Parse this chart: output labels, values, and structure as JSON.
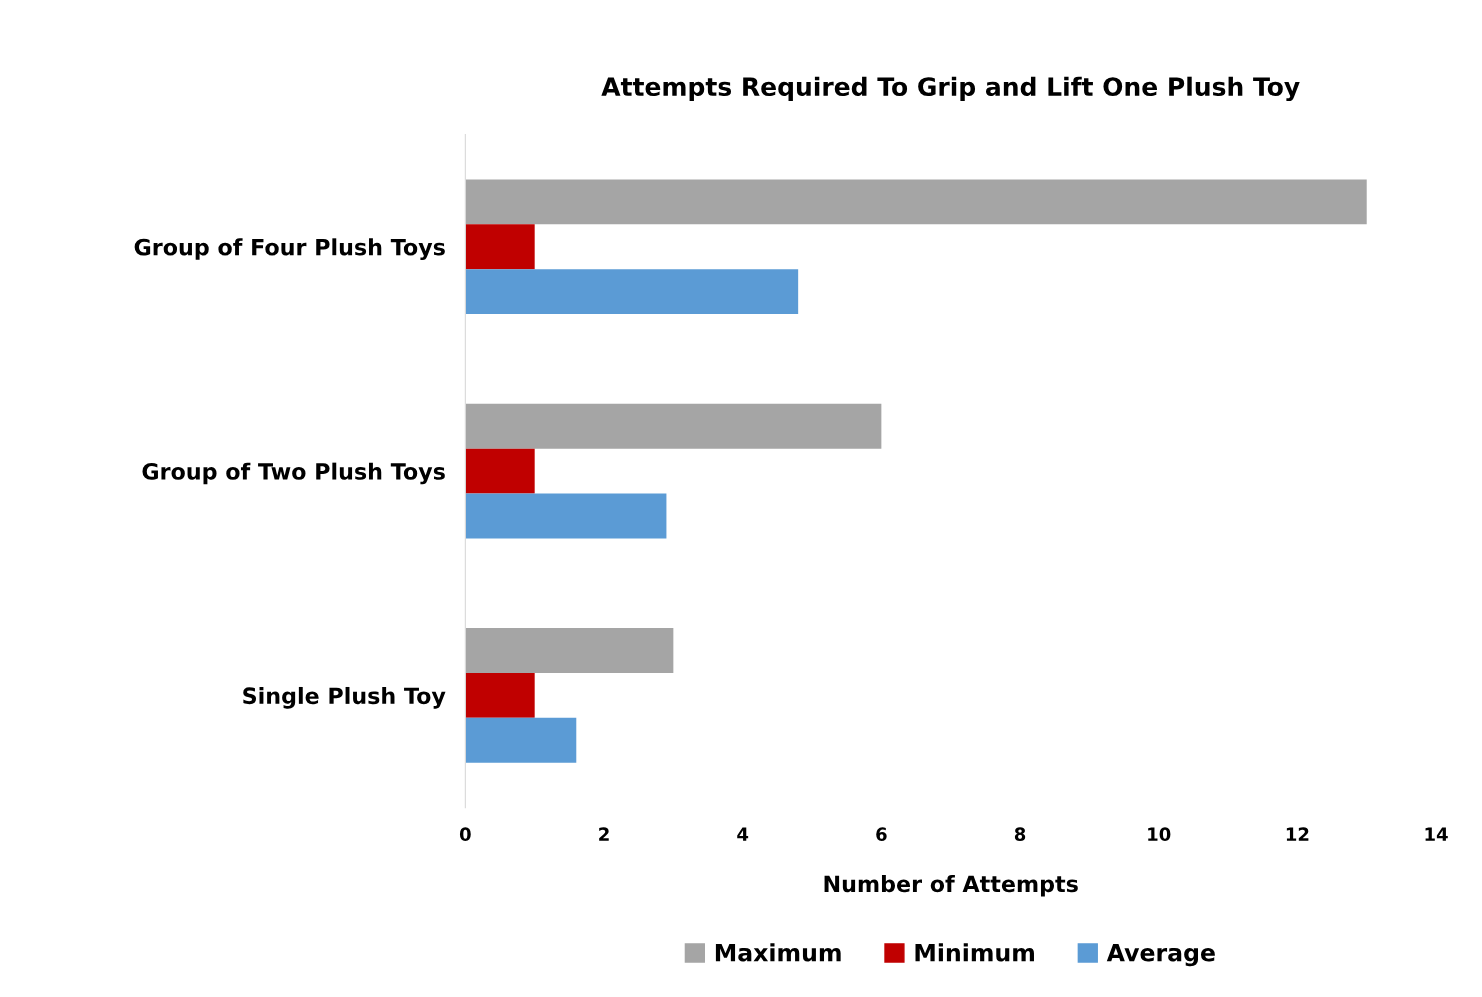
{
  "chart_data": {
    "type": "bar",
    "orientation": "horizontal",
    "title": "Attempts Required To Grip and Lift One Plush Toy",
    "xlabel": "Number of Attempts",
    "categories": [
      "Group of Four Plush Toys",
      "Group of Two Plush Toys",
      "Single Plush Toy"
    ],
    "series": [
      {
        "name": "Maximum",
        "color": "#a5a5a5",
        "values": [
          13,
          6,
          3
        ]
      },
      {
        "name": "Minimum",
        "color": "#c00000",
        "values": [
          1,
          1,
          1
        ]
      },
      {
        "name": "Average",
        "color": "#5b9bd5",
        "values": [
          4.8,
          2.9,
          1.6
        ]
      }
    ],
    "xlim": [
      0,
      14
    ],
    "xticks": [
      0,
      2,
      4,
      6,
      8,
      10,
      12,
      14
    ],
    "grid": false,
    "legend": "bottom"
  }
}
